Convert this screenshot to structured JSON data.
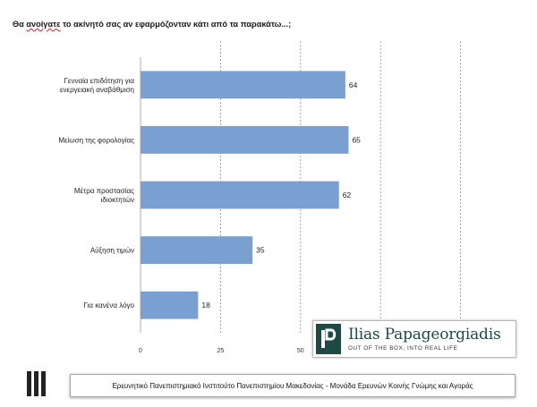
{
  "question": {
    "before": "Θα ",
    "misspelled": "ανοίγατε",
    "after": " το ακίνητό σας αν εφαρμόζονταν κάτι από τα παρακάτω...;"
  },
  "chart_data": {
    "type": "bar",
    "orientation": "horizontal",
    "categories": [
      "Γενναία επιδότηση για ενεργειακή αναβάθμιση",
      "Μείωση της φορολογίας",
      "Μέτρα προστασίας ιδιοκτητών",
      "Αύξηση τιμών",
      "Για κανένα λόγο"
    ],
    "values": [
      64,
      65,
      62,
      35,
      18
    ],
    "value_labels": [
      "64",
      "65",
      "62",
      "35",
      "18"
    ],
    "xlim": [
      0,
      125
    ],
    "xticks_visible": [
      "0",
      "25",
      "50"
    ],
    "grid": "vertical dashed",
    "bar_color": "#7a9fd1",
    "title": "",
    "xlabel": "",
    "ylabel": ""
  },
  "brand": {
    "name": "Ilias Papageorgiadis",
    "tagline": "OUT OF THE BOX, INTO REAL LIFE",
    "logo_icon": "ip-monogram-icon",
    "color": "#1d4a44"
  },
  "footer": {
    "text": "Ερευνητικό Πανεπιστημιακό Ινστιτούτο Πανεπιστημίου Μακεδονίας - Μονάδα Ερευνών Κοινής Γνώμης και Αγοράς",
    "logo_icon": "university-bars-icon"
  }
}
